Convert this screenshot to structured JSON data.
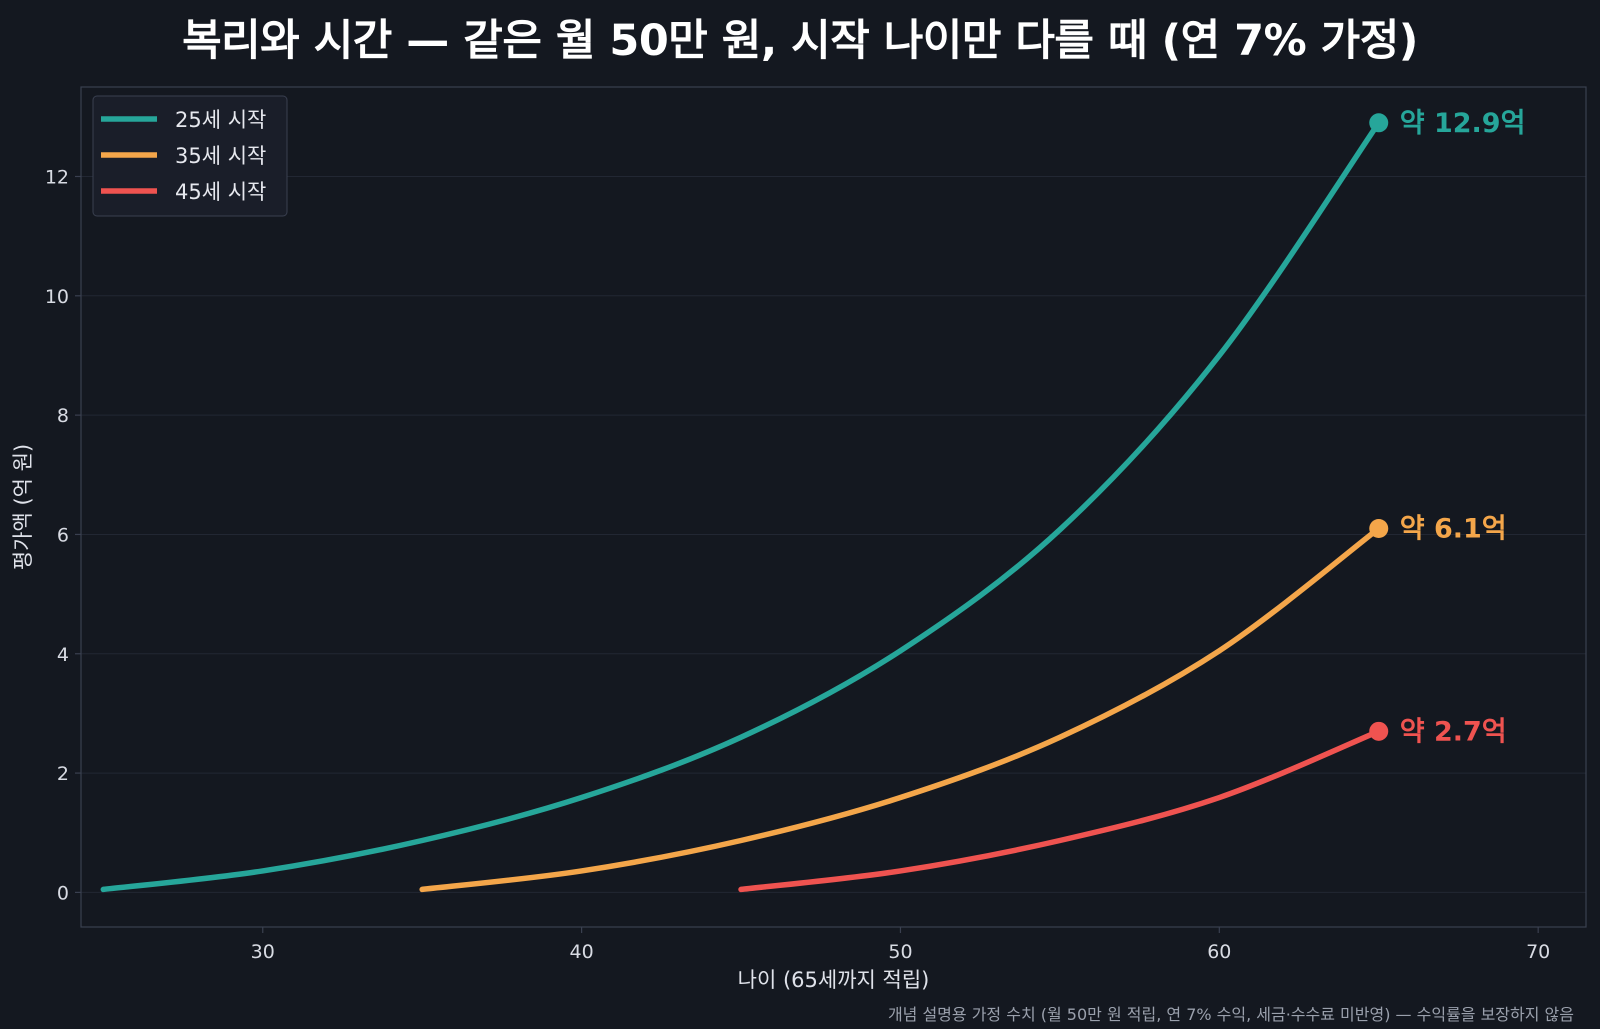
{
  "chart_data": {
    "type": "line",
    "title": "복리와 시간 — 같은 월 50만 원, 시작 나이만 다를 때 (연 7% 가정)",
    "xlabel": "나이 (65세까지 적립)",
    "ylabel": "평가액 (억 원)",
    "xlim": [
      24.3,
      71.5
    ],
    "ylim": [
      -0.58,
      13.5
    ],
    "xticks": [
      30,
      40,
      50,
      60,
      70
    ],
    "yticks": [
      0,
      2,
      4,
      6,
      8,
      10,
      12
    ],
    "grid": "horizontal",
    "legend_position": "top-left",
    "footnote": "개념 설명용 가정 수치 (월 50만 원 적립, 연 7% 수익, 세금·수수료 미반영) — 수익률을 보장하지 않음",
    "series": [
      {
        "name": "25세 시작",
        "color": "#26a69a",
        "start_age": 25,
        "end_age": 65,
        "x": [
          25,
          30,
          35,
          40,
          45,
          50,
          55,
          60,
          65
        ],
        "y": [
          0.05,
          0.36,
          0.87,
          1.59,
          2.6,
          4.05,
          6.08,
          9.0,
          12.9
        ],
        "end_label": "약 12.9억"
      },
      {
        "name": "35세 시작",
        "color": "#f4a64a",
        "start_age": 35,
        "end_age": 65,
        "x": [
          35,
          40,
          45,
          50,
          55,
          60,
          65
        ],
        "y": [
          0.05,
          0.36,
          0.87,
          1.59,
          2.6,
          4.05,
          6.1
        ],
        "end_label": "약 6.1억"
      },
      {
        "name": "45세 시작",
        "color": "#ef5350",
        "start_age": 45,
        "end_age": 65,
        "x": [
          45,
          50,
          55,
          60,
          65
        ],
        "y": [
          0.05,
          0.36,
          0.87,
          1.59,
          2.7
        ],
        "end_label": "약 2.7억"
      }
    ]
  },
  "colors": {
    "background": "#141820",
    "grid": "#222733",
    "axis": "#3a4050"
  }
}
